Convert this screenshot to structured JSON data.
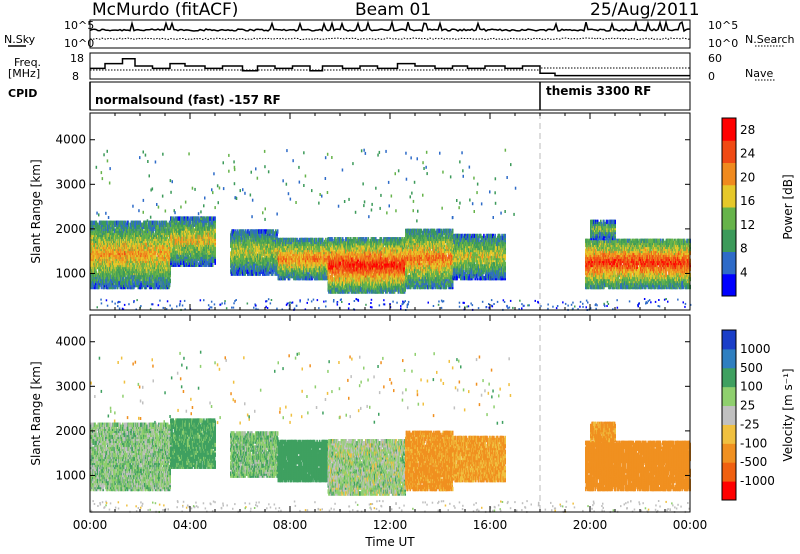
{
  "header": {
    "station": "McMurdo (fitACF)",
    "beam": "Beam 01",
    "date": "25/Aug/2011"
  },
  "top_panels": {
    "nsky_label": "N.Sky",
    "nsearch_label": "N.Search",
    "nsky_ticks": [
      "10^5",
      "10^0"
    ],
    "nsearch_ticks": [
      "10^5",
      "10^0"
    ],
    "freq_label": "Freq.",
    "freq_unit": "[MHz]",
    "freq_ticks": [
      "18",
      "8"
    ],
    "nave_label": "Nave",
    "nave_ticks": [
      "60",
      "0"
    ],
    "cpid_label": "CPID",
    "cpid_segments": [
      {
        "name": "normalsound (fast) -157 RF",
        "start": 0,
        "end": 18.0
      },
      {
        "name": "themis 3300 RF",
        "start": 18.0,
        "end": 24
      }
    ],
    "freq_steps": [
      [
        0,
        12
      ],
      [
        0.6,
        14
      ],
      [
        1.3,
        16
      ],
      [
        1.8,
        13
      ],
      [
        2.5,
        12
      ],
      [
        3.2,
        14
      ],
      [
        3.8,
        13
      ],
      [
        4.6,
        12
      ],
      [
        5.3,
        13
      ],
      [
        6.1,
        11
      ],
      [
        6.7,
        13
      ],
      [
        7.4,
        12
      ],
      [
        8.1,
        13
      ],
      [
        8.8,
        11
      ],
      [
        9.3,
        13
      ],
      [
        10.1,
        12
      ],
      [
        10.8,
        13
      ],
      [
        11.5,
        12
      ],
      [
        12.3,
        14
      ],
      [
        13.0,
        13
      ],
      [
        13.8,
        12
      ],
      [
        14.5,
        13
      ],
      [
        15.1,
        12
      ],
      [
        15.8,
        13
      ],
      [
        16.6,
        12
      ],
      [
        17.3,
        13
      ],
      [
        18.0,
        10
      ],
      [
        18.6,
        9
      ],
      [
        19.3,
        9
      ],
      [
        20.0,
        9
      ],
      [
        21.0,
        9
      ],
      [
        22.0,
        9
      ],
      [
        23.0,
        9
      ],
      [
        24,
        9
      ]
    ]
  },
  "chart_data": [
    {
      "type": "heatmap",
      "title": "Power",
      "ylabel": "Slant Range [km]",
      "ylim": [
        180,
        4600
      ],
      "yticks": [
        1000,
        2000,
        3000,
        4000
      ],
      "xlim": [
        0,
        24
      ],
      "colorbar": {
        "label": "Power [dB]",
        "ticks": [
          4,
          8,
          12,
          16,
          20,
          24,
          28
        ],
        "range": [
          0,
          30
        ],
        "colors": [
          "#0000ff",
          "#2e6bc8",
          "#3c9a5a",
          "#66b34a",
          "#e6c82a",
          "#f08a1e",
          "#f04a14",
          "#ff0000"
        ]
      },
      "blobs": [
        {
          "t0": 0.0,
          "t1": 3.2,
          "r0": 700,
          "r1": 2200,
          "v": 20
        },
        {
          "t0": 3.2,
          "t1": 5.0,
          "r0": 1200,
          "r1": 2300,
          "v": 18
        },
        {
          "t0": 5.6,
          "t1": 7.5,
          "r0": 1000,
          "r1": 2000,
          "v": 16
        },
        {
          "t0": 7.5,
          "t1": 9.5,
          "r0": 900,
          "r1": 1800,
          "v": 22
        },
        {
          "t0": 9.5,
          "t1": 12.6,
          "r0": 600,
          "r1": 1800,
          "v": 27
        },
        {
          "t0": 12.6,
          "t1": 14.5,
          "r0": 700,
          "r1": 2000,
          "v": 22
        },
        {
          "t0": 14.5,
          "t1": 16.6,
          "r0": 900,
          "r1": 1900,
          "v": 17
        },
        {
          "t0": 19.8,
          "t1": 24.0,
          "r0": 700,
          "r1": 1800,
          "v": 26
        },
        {
          "t0": 20.0,
          "t1": 21.0,
          "r0": 1800,
          "r1": 2200,
          "v": 14
        }
      ]
    },
    {
      "type": "heatmap",
      "title": "Velocity",
      "ylabel": "Slant Range [km]",
      "ylim": [
        180,
        4600
      ],
      "yticks": [
        1000,
        2000,
        3000,
        4000
      ],
      "xlim": [
        0,
        24
      ],
      "xticks": [
        "00:00",
        "04:00",
        "08:00",
        "12:00",
        "16:00",
        "20:00",
        "00:00"
      ],
      "xlabel": "Time UT",
      "colorbar": {
        "label": "Velocity [m s⁻¹]",
        "ticks": [
          "1000",
          "500",
          "100",
          "25",
          "-25",
          "-100",
          "-500",
          "-1000"
        ],
        "colors": [
          "#1a3ec8",
          "#2f7fc0",
          "#3fa060",
          "#8fcf6e",
          "#c0c0c0",
          "#f0c040",
          "#f09020",
          "#f06010",
          "#ff0000"
        ]
      },
      "blobs": [
        {
          "t0": 0.0,
          "t1": 3.2,
          "r0": 700,
          "r1": 2200,
          "v": 60
        },
        {
          "t0": 3.2,
          "t1": 5.0,
          "r0": 1200,
          "r1": 2300,
          "v": 150
        },
        {
          "t0": 5.6,
          "t1": 7.5,
          "r0": 1000,
          "r1": 2000,
          "v": 80
        },
        {
          "t0": 7.5,
          "t1": 9.5,
          "r0": 900,
          "r1": 1800,
          "v": 200
        },
        {
          "t0": 9.5,
          "t1": 12.6,
          "r0": 600,
          "r1": 1800,
          "v": 40
        },
        {
          "t0": 12.6,
          "t1": 14.5,
          "r0": 700,
          "r1": 2000,
          "v": -150
        },
        {
          "t0": 14.5,
          "t1": 16.6,
          "r0": 900,
          "r1": 1900,
          "v": -120
        },
        {
          "t0": 19.8,
          "t1": 24.0,
          "r0": 700,
          "r1": 1800,
          "v": -300
        },
        {
          "t0": 20.0,
          "t1": 21.0,
          "r0": 1800,
          "r1": 2200,
          "v": -150
        }
      ]
    }
  ]
}
